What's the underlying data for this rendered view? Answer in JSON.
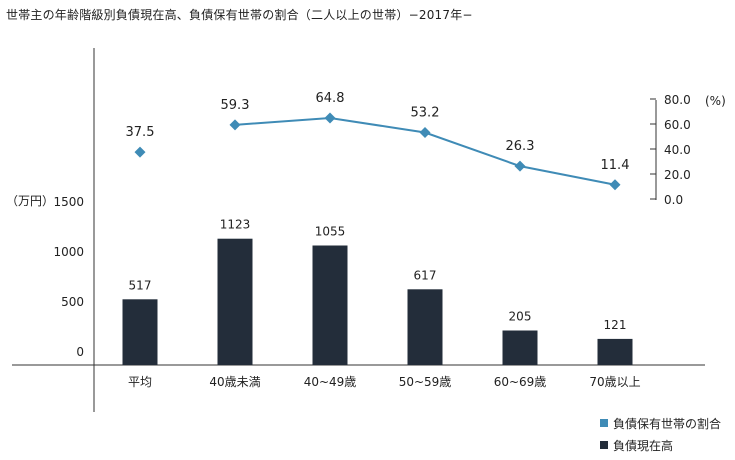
{
  "title": "世帯主の年齢階級別負債現在高、負債保有世帯の割合（二人以上の世帯）−2017年−",
  "colors": {
    "bar": "#232d3a",
    "line": "#3f8bb6",
    "axis": "#333333"
  },
  "chart_data": {
    "type": "bar+line",
    "categories": [
      "平均",
      "40歳未満",
      "40~49歳",
      "50~59歳",
      "60~69歳",
      "70歳以上"
    ],
    "left_axis": {
      "unit_label": "（万円）",
      "ticks": [
        "1500",
        "1000",
        "500",
        "0"
      ],
      "ylim": [
        0,
        1500
      ]
    },
    "right_axis": {
      "unit_label": "(%)",
      "ticks": [
        "80.0",
        "60.0",
        "40.0",
        "20.0",
        "0.0"
      ],
      "ylim": [
        0,
        80
      ]
    },
    "series": [
      {
        "name": "負債現在高",
        "type": "bar",
        "values": [
          517,
          1123,
          1055,
          617,
          205,
          121
        ],
        "labels": [
          "517",
          "1123",
          "1055",
          "617",
          "205",
          "121"
        ]
      },
      {
        "name": "負債保有世帯の割合",
        "type": "line",
        "values": [
          37.5,
          59.3,
          64.8,
          53.2,
          26.3,
          11.4
        ],
        "labels": [
          "37.5",
          "59.3",
          "64.8",
          "53.2",
          "26.3",
          "11.4"
        ],
        "connected_from_index": 1
      }
    ],
    "legend": [
      {
        "label": "負債保有世帯の割合",
        "color": "#3f8bb6"
      },
      {
        "label": "負債現在高",
        "color": "#232d3a"
      }
    ],
    "legend_position": "bottom-right",
    "grid": false
  }
}
